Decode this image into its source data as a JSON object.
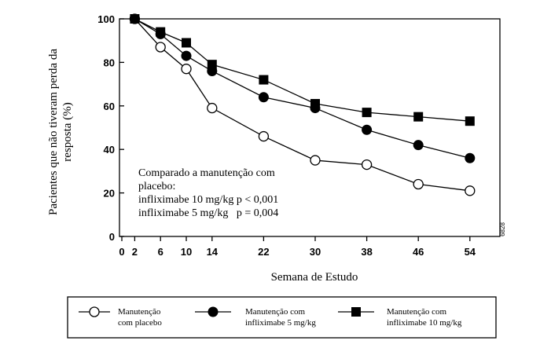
{
  "chart_data": {
    "type": "line",
    "xlabel": "Semana de Estudo",
    "ylabel_line1": "Pacientes que não tiveram perda da",
    "ylabel_line2": "resposta (%)",
    "x_ticks": [
      0,
      2,
      6,
      10,
      14,
      22,
      30,
      38,
      46,
      54
    ],
    "y_ticks": [
      0,
      20,
      40,
      60,
      80,
      100
    ],
    "xlim": [
      0,
      56
    ],
    "ylim": [
      0,
      100
    ],
    "grid": false,
    "legend_position": "bottom",
    "annotation": {
      "lines": [
        "Comparado a manutenção com",
        "placebo:",
        "infliximabe 10 mg/kg p < 0,001",
        "infliximabe 5 mg/kg   p = 0,004"
      ]
    },
    "code_tag": "6828",
    "series": [
      {
        "marker": "open-circle",
        "legend_lines": [
          "Manutenção",
          "com placebo"
        ],
        "x": [
          2,
          6,
          10,
          14,
          22,
          30,
          38,
          46,
          54
        ],
        "values": [
          100,
          87,
          77,
          59,
          46,
          35,
          33,
          24,
          21
        ]
      },
      {
        "marker": "filled-circle",
        "legend_lines": [
          "Manutenção com",
          "infliximabe 5 mg/kg"
        ],
        "x": [
          2,
          6,
          10,
          14,
          22,
          30,
          38,
          46,
          54
        ],
        "values": [
          100,
          93,
          83,
          76,
          64,
          59,
          49,
          42,
          36
        ]
      },
      {
        "marker": "filled-square",
        "legend_lines": [
          "Manutenção com",
          "infliximabe 10 mg/kg"
        ],
        "x": [
          2,
          6,
          10,
          14,
          22,
          30,
          38,
          46,
          54
        ],
        "values": [
          100,
          94,
          89,
          79,
          72,
          61,
          57,
          55,
          53
        ]
      }
    ]
  }
}
